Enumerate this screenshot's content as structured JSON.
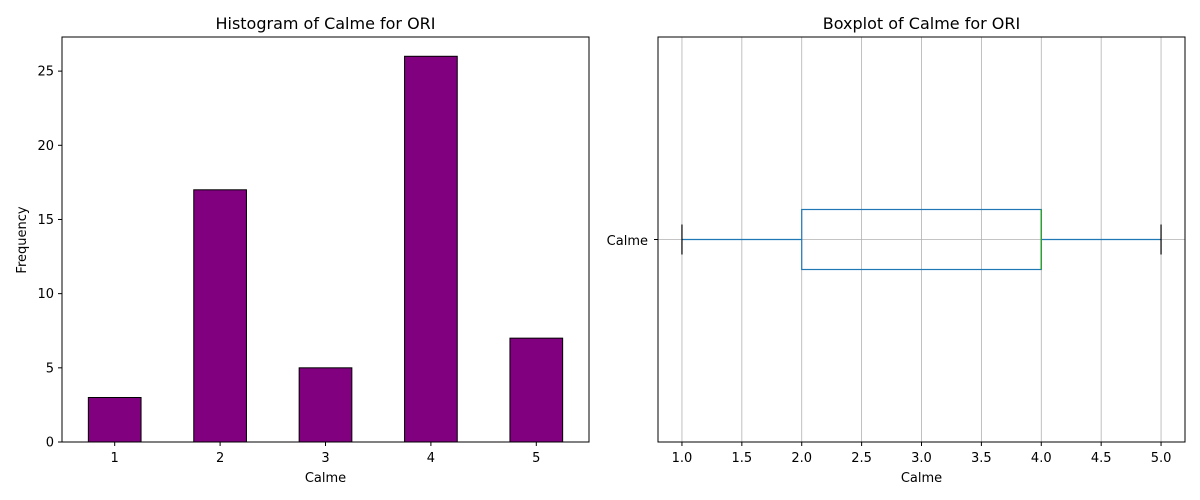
{
  "chart_data": [
    {
      "type": "bar",
      "title": "Histogram of Calme for ORI",
      "xlabel": "Calme",
      "ylabel": "Frequency",
      "categories": [
        "1",
        "2",
        "3",
        "4",
        "5"
      ],
      "values": [
        3,
        17,
        5,
        26,
        7
      ],
      "ylim": [
        0,
        27.3
      ],
      "yticks": [
        "0",
        "5",
        "10",
        "15",
        "20",
        "25"
      ],
      "ytick_values": [
        0,
        5,
        10,
        15,
        20,
        25
      ],
      "bar_color": "#800080",
      "edge_color": "#000000",
      "grid": false
    },
    {
      "type": "boxplot",
      "title": "Boxplot of Calme for ORI",
      "xlabel": "Calme",
      "category_label": "Calme",
      "min": 1.0,
      "q1": 2.0,
      "median": 4.0,
      "q3": 4.0,
      "max": 5.0,
      "xlim": [
        0.8,
        5.2
      ],
      "xticks": [
        "1.0",
        "1.5",
        "2.0",
        "2.5",
        "3.0",
        "3.5",
        "4.0",
        "4.5",
        "5.0"
      ],
      "xtick_values": [
        1.0,
        1.5,
        2.0,
        2.5,
        3.0,
        3.5,
        4.0,
        4.5,
        5.0
      ],
      "box_color": "#1f77b4",
      "median_color": "#2ca02c",
      "grid": true
    }
  ]
}
